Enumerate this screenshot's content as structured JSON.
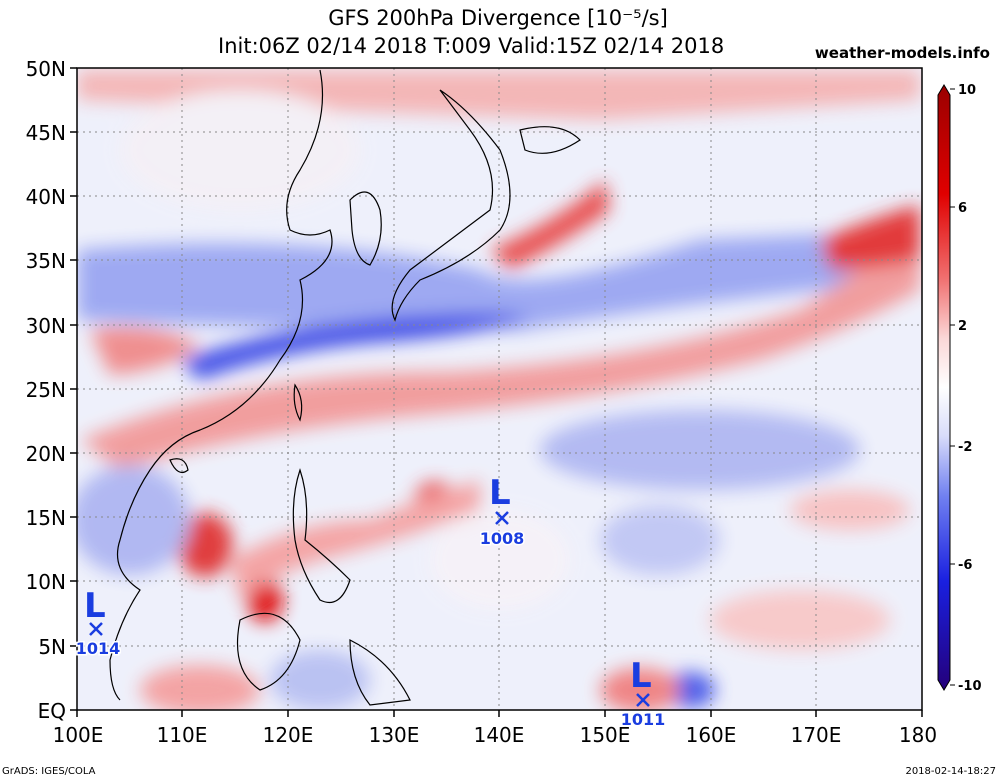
{
  "title_line1": "GFS 200hPa Divergence [10⁻⁵/s]",
  "title_line2": "Init:06Z 02/14 2018 T:009 Valid:15Z 02/14 2018",
  "site": "weather-models.info",
  "credit": "GrADS: IGES/COLA",
  "timestamp": "2018-02-14-18:27",
  "lat_labels": [
    "50N",
    "45N",
    "40N",
    "35N",
    "30N",
    "25N",
    "20N",
    "15N",
    "10N",
    "5N",
    "EQ"
  ],
  "lon_labels": [
    "100E",
    "110E",
    "120E",
    "130E",
    "140E",
    "150E",
    "160E",
    "170E",
    "180"
  ],
  "colorbar_labels": [
    "10",
    "6",
    "2",
    "-2",
    "-6",
    "-10"
  ],
  "colors": {
    "red_strong": "#d40000",
    "red": "#f05050",
    "pink": "#f7b0b0",
    "white": "#ffffff",
    "lightblue": "#b8c2f4",
    "blue": "#3a4ae8",
    "navy": "#1a14a0"
  },
  "lows": [
    {
      "symbol": "L",
      "pressure": "1008"
    },
    {
      "symbol": "L",
      "pressure": "1014"
    },
    {
      "symbol": "L",
      "pressure": "1011"
    }
  ]
}
